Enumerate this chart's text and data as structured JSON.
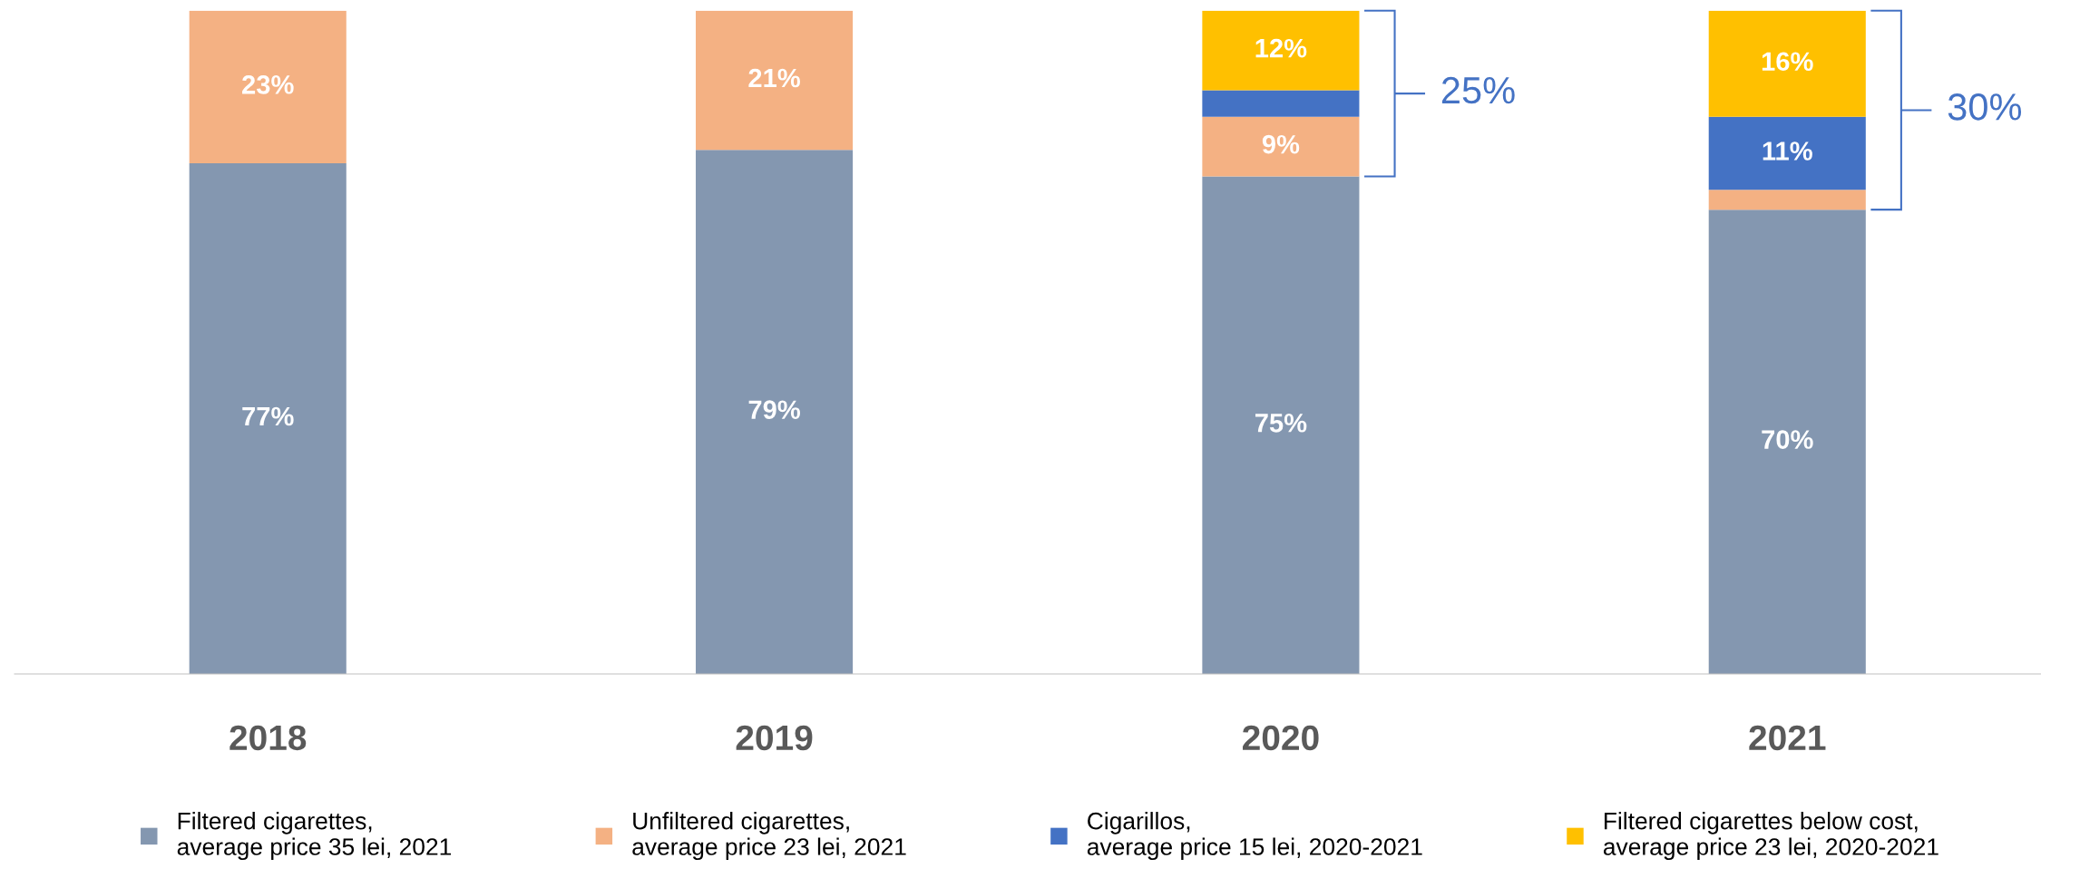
{
  "chart_data": {
    "type": "bar",
    "stacked": true,
    "categories": [
      "2018",
      "2019",
      "2020",
      "2021"
    ],
    "series": [
      {
        "name": "Filtered cigarettes,\naverage price 35 lei, 2021",
        "color": "#8497b0",
        "values": [
          77,
          79,
          75,
          70
        ],
        "value_labels": [
          "77%",
          "79%",
          "75%",
          "70%"
        ]
      },
      {
        "name": "Unfiltered cigarettes,\naverage price 23 lei, 2021",
        "color": "#f4b183",
        "values": [
          23,
          21,
          9,
          3
        ],
        "value_labels": [
          "23%",
          "21%",
          "9%",
          null
        ]
      },
      {
        "name": "Cigarillos,\naverage price 15 lei, 2020-2021",
        "color": "#4472c4",
        "values": [
          0,
          0,
          4,
          11
        ],
        "value_labels": [
          null,
          null,
          null,
          "11%"
        ]
      },
      {
        "name": "Filtered cigarettes below cost,\naverage price 23 lei, 2020-2021",
        "color": "#ffc000",
        "values": [
          0,
          0,
          12,
          16
        ],
        "value_labels": [
          null,
          null,
          "12%",
          "16%"
        ]
      }
    ],
    "annotations": [
      "25%",
      "30%"
    ],
    "legend": "bottom",
    "grid": false
  }
}
